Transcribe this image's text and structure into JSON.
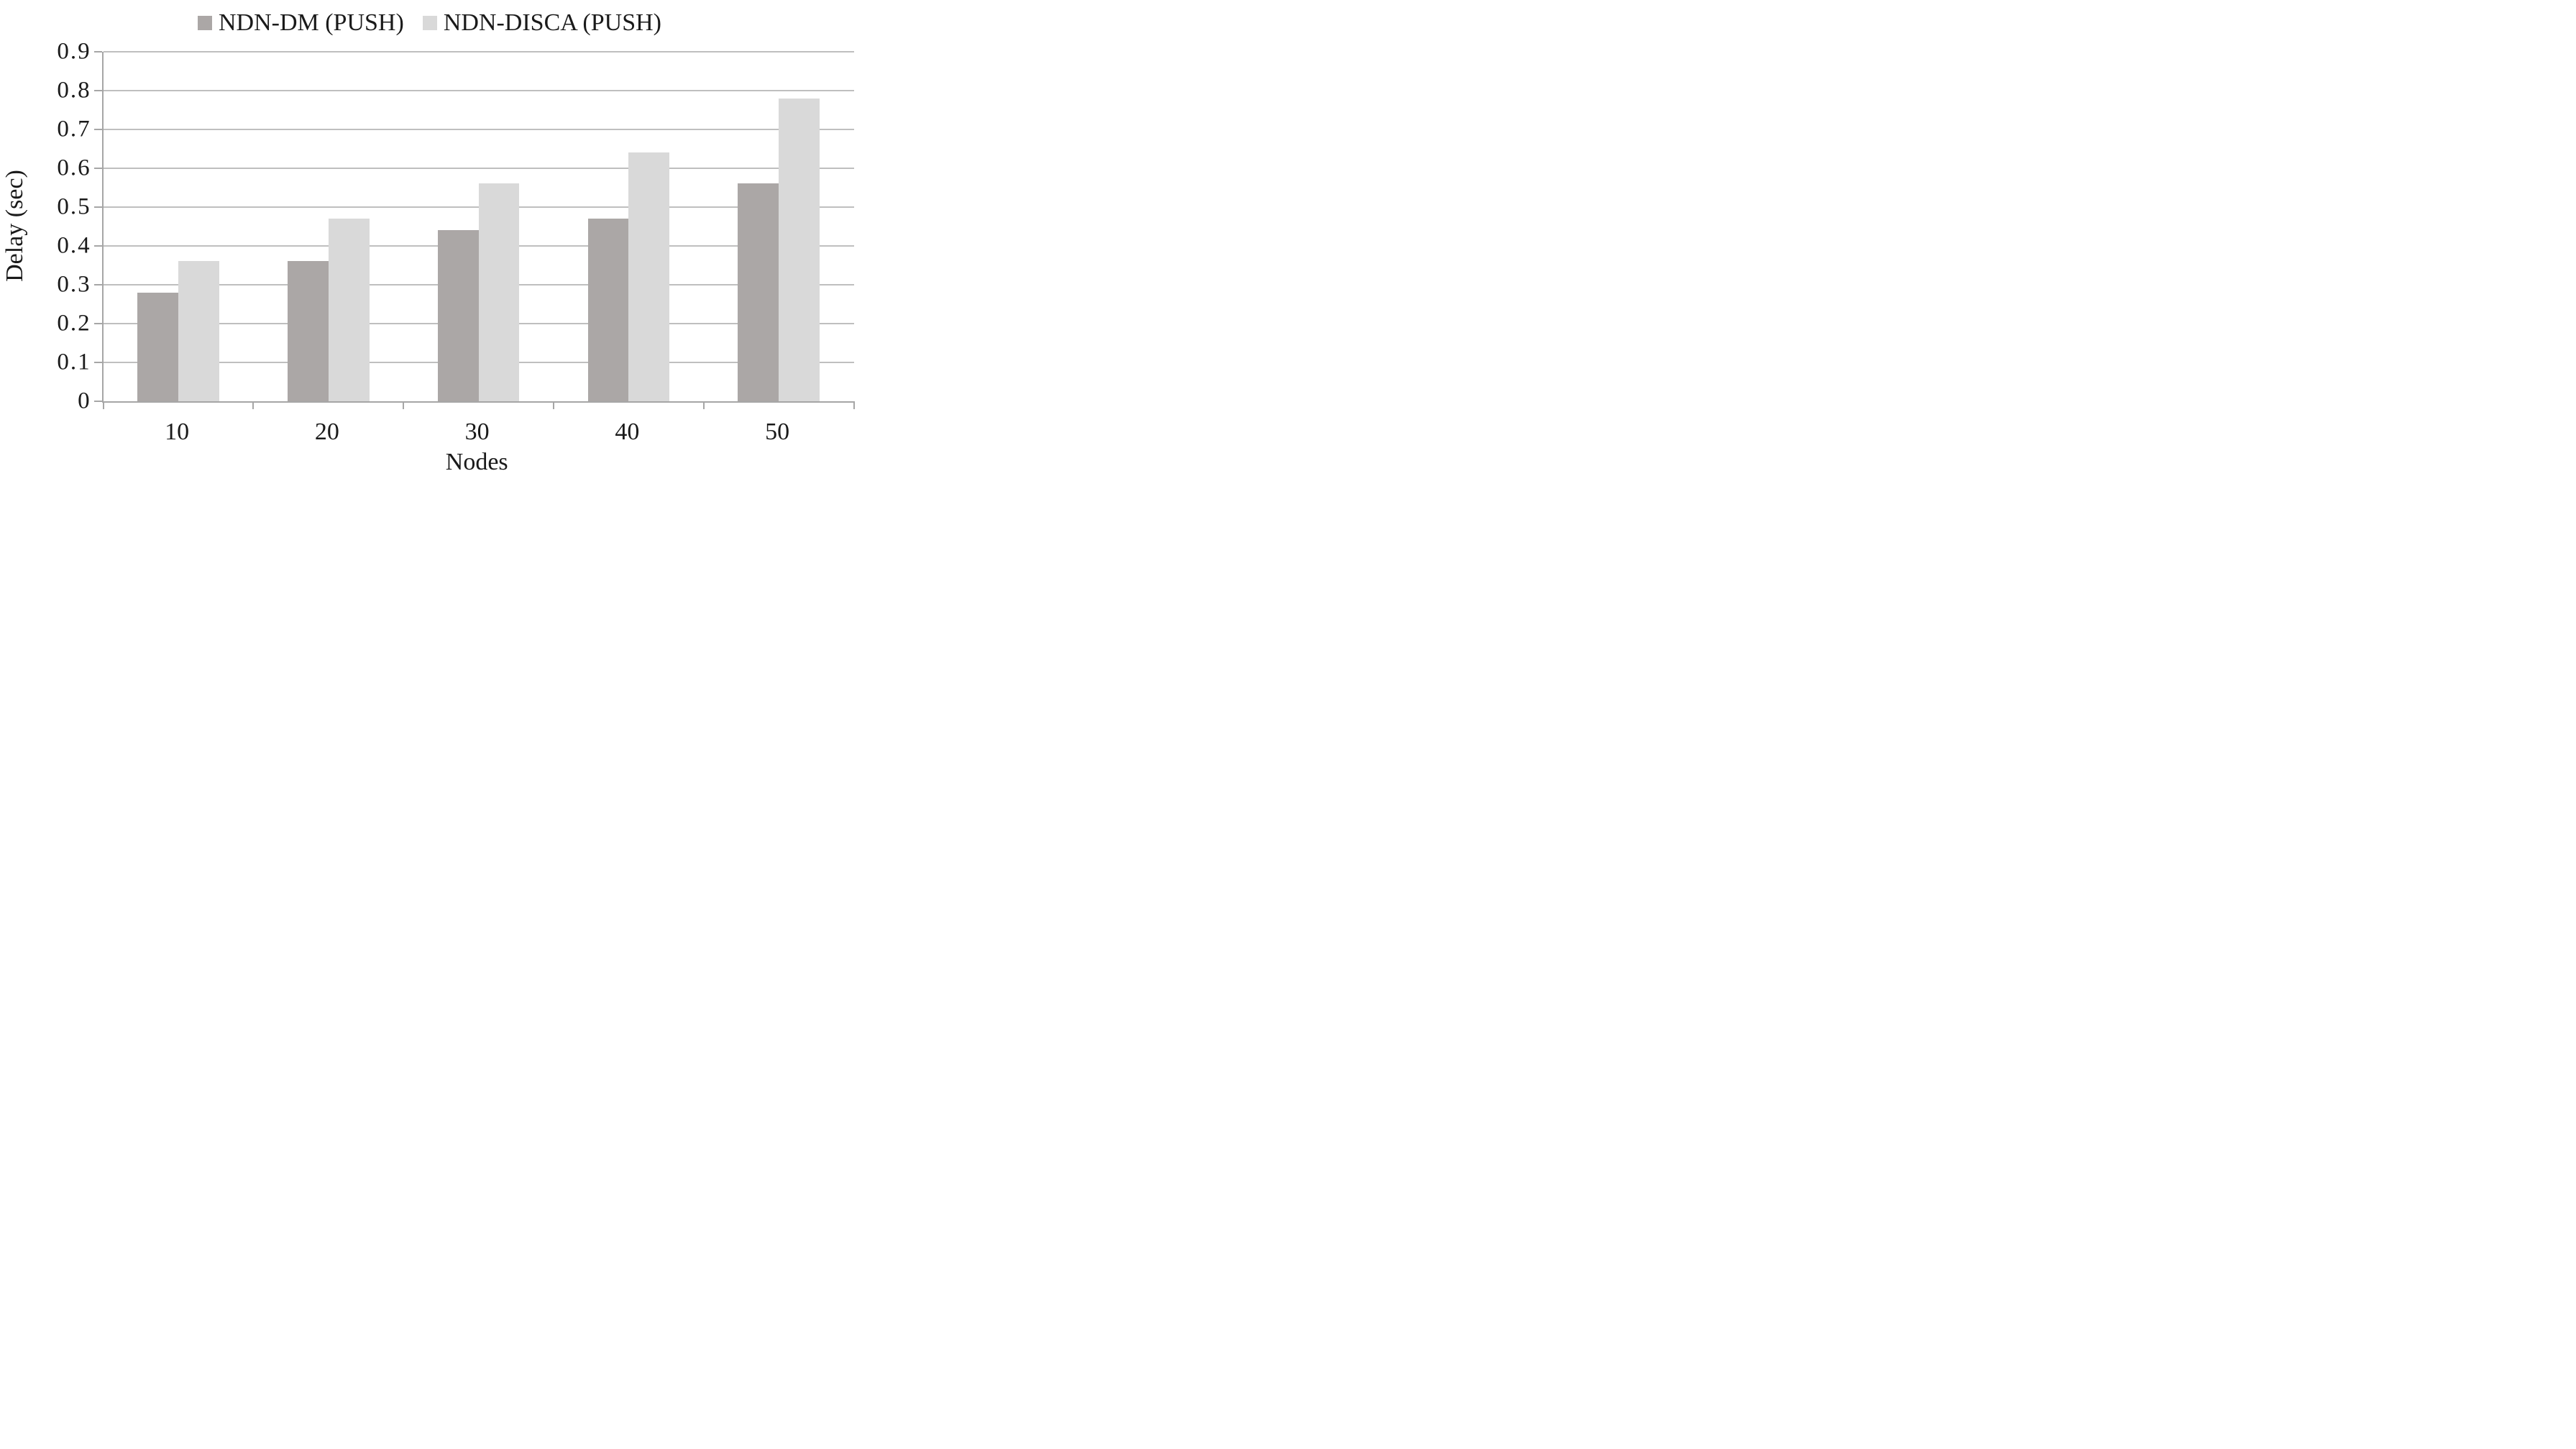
{
  "chart_data": {
    "type": "bar",
    "title": "",
    "categories": [
      "10",
      "20",
      "30",
      "40",
      "50"
    ],
    "series": [
      {
        "name": "NDN-DM (PUSH)",
        "color": "#aba7a6",
        "values": [
          0.28,
          0.36,
          0.44,
          0.47,
          0.56
        ]
      },
      {
        "name": "NDN-DISCA (PUSH)",
        "color": "#d9d9d9",
        "values": [
          0.36,
          0.47,
          0.56,
          0.64,
          0.78
        ]
      }
    ],
    "xlabel": "Nodes",
    "ylabel": "Delay (sec)",
    "ylim": [
      0,
      0.9
    ],
    "ytick_step": 0.1,
    "ytick_labels": [
      "0.9",
      "0.8",
      "0.7",
      "0.6",
      "0.5",
      "0.4",
      "0.3",
      "0.2",
      "0.1",
      "0"
    ],
    "grid": "horizontal",
    "legend_position": "top-center",
    "colors": {
      "gridline": "#bfbfbf",
      "axis": "#a6a6a6",
      "text": "#1a1a1a",
      "background": "#ffffff"
    }
  }
}
